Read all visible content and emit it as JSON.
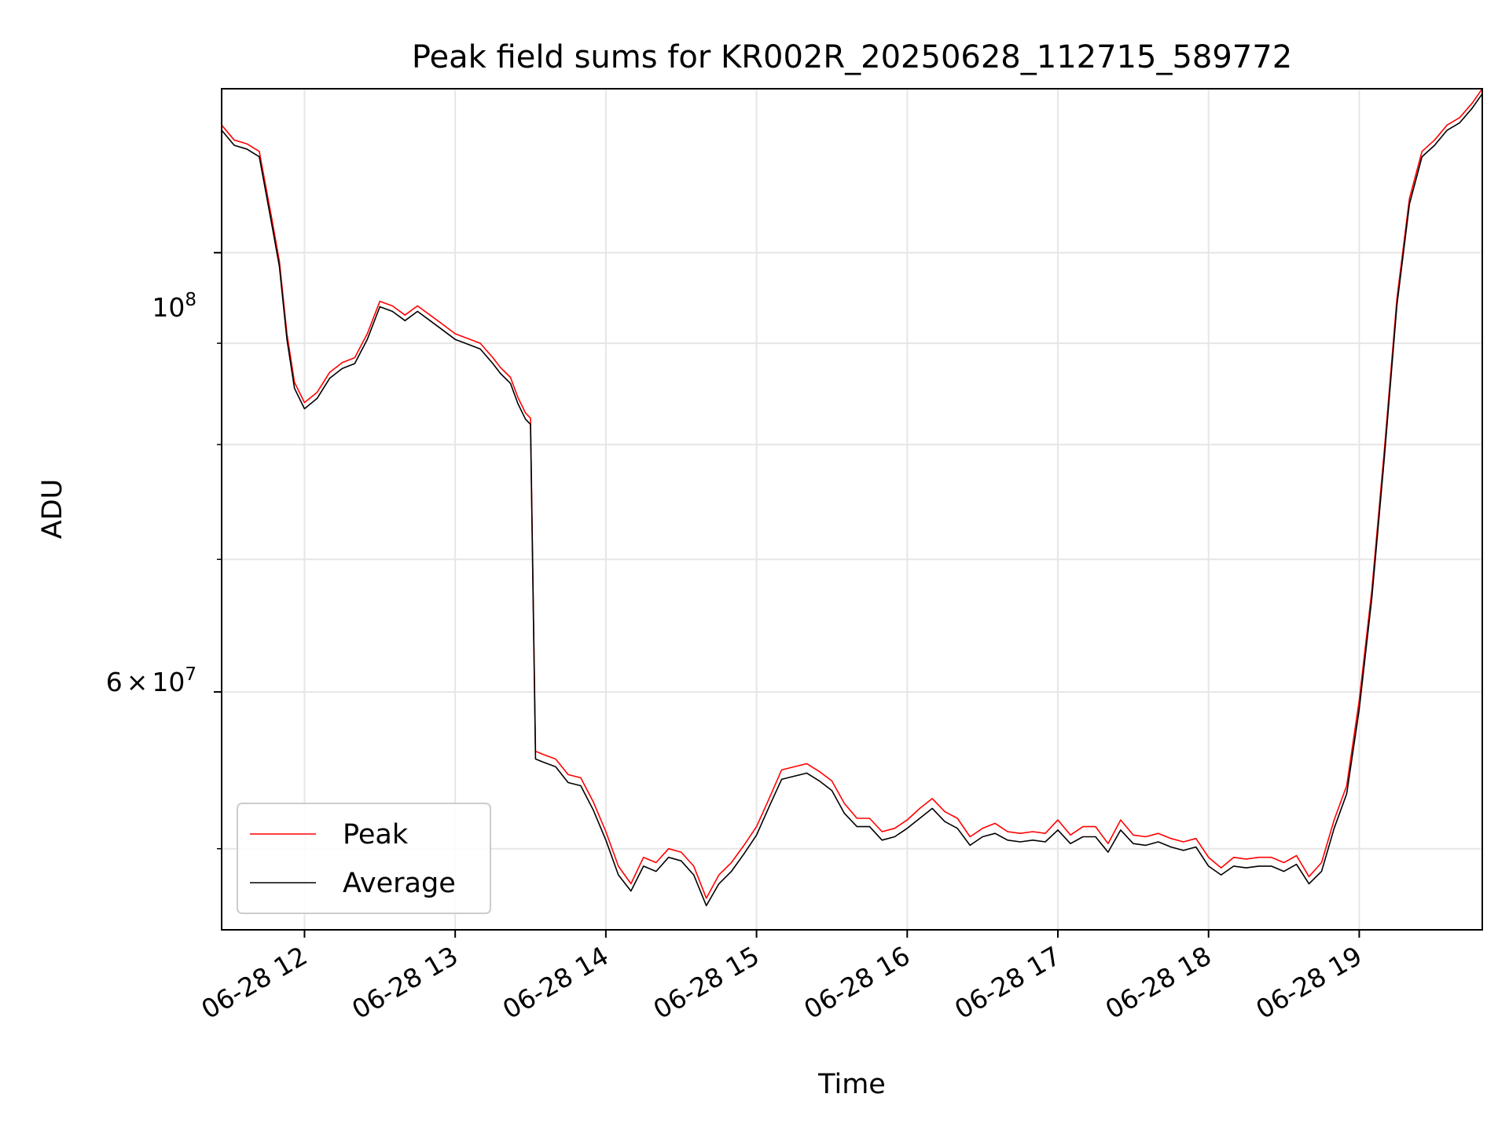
{
  "chart_data": {
    "type": "line",
    "title": "Peak field sums for KR002R_20250628_112715_589772",
    "xlabel": "Time",
    "ylabel": "ADU",
    "yscale": "log",
    "grid": true,
    "legend_position": "lower-left",
    "x_tick_labels": [
      "06-28 12",
      "06-28 13",
      "06-28 14",
      "06-28 15",
      "06-28 16",
      "06-28 17",
      "06-28 18",
      "06-28 19"
    ],
    "y_tick_labels": [
      {
        "value": 100000000,
        "base": "10",
        "exponent": "8"
      },
      {
        "value": 60000000,
        "mantissa": "6",
        "times": "×",
        "base": "10",
        "exponent": "7"
      }
    ],
    "xlim": [
      "2025-06-28 11:27",
      "2025-06-28 19:49"
    ],
    "ylim": [
      45500000,
      121000000
    ],
    "colors": {
      "Peak": "#ff0000",
      "Average": "#000000"
    },
    "series": [
      {
        "name": "Peak",
        "x": [
          "11:27",
          "11:32",
          "11:37",
          "11:42",
          "11:47",
          "11:50",
          "11:53",
          "11:56",
          "12:00",
          "12:05",
          "12:10",
          "12:15",
          "12:20",
          "12:25",
          "12:30",
          "12:35",
          "12:40",
          "12:45",
          "12:50",
          "12:55",
          "13:00",
          "13:05",
          "13:10",
          "13:15",
          "13:18",
          "13:22",
          "13:25",
          "13:28",
          "13:30",
          "13:32",
          "13:35",
          "13:40",
          "13:45",
          "13:50",
          "13:55",
          "14:00",
          "14:05",
          "14:10",
          "14:15",
          "14:20",
          "14:25",
          "14:30",
          "14:35",
          "14:40",
          "14:45",
          "14:50",
          "14:55",
          "15:00",
          "15:05",
          "15:10",
          "15:15",
          "15:20",
          "15:25",
          "15:30",
          "15:35",
          "15:40",
          "15:45",
          "15:50",
          "15:55",
          "16:00",
          "16:05",
          "16:10",
          "16:15",
          "16:20",
          "16:25",
          "16:30",
          "16:35",
          "16:40",
          "16:45",
          "16:50",
          "16:55",
          "17:00",
          "17:05",
          "17:10",
          "17:15",
          "17:20",
          "17:25",
          "17:30",
          "17:35",
          "17:40",
          "17:45",
          "17:50",
          "17:55",
          "18:00",
          "18:05",
          "18:10",
          "18:15",
          "18:20",
          "18:25",
          "18:30",
          "18:35",
          "18:40",
          "18:45",
          "18:50",
          "18:55",
          "19:00",
          "19:05",
          "19:10",
          "19:15",
          "19:20",
          "19:25",
          "19:30",
          "19:35",
          "19:40",
          "19:45",
          "19:49"
        ],
        "y": [
          116000000,
          114000000,
          113500000,
          112500000,
          104000000,
          99000000,
          91000000,
          86000000,
          84000000,
          85000000,
          87000000,
          88000000,
          88500000,
          91000000,
          94500000,
          94000000,
          93000000,
          94000000,
          93000000,
          92000000,
          91000000,
          90500000,
          90000000,
          88500000,
          87500000,
          86500000,
          84500000,
          83000000,
          82500000,
          56000000,
          55800000,
          55500000,
          54500000,
          54300000,
          52800000,
          51000000,
          49000000,
          48000000,
          49500000,
          49200000,
          50000000,
          49800000,
          49000000,
          47200000,
          48500000,
          49200000,
          50200000,
          51300000,
          53000000,
          54800000,
          55000000,
          55200000,
          54700000,
          54100000,
          52700000,
          51800000,
          51800000,
          51000000,
          51200000,
          51700000,
          52400000,
          53000000,
          52200000,
          51800000,
          50700000,
          51200000,
          51500000,
          51000000,
          50900000,
          51000000,
          50900000,
          51700000,
          50800000,
          51300000,
          51300000,
          50300000,
          51700000,
          50800000,
          50700000,
          50900000,
          50600000,
          50400000,
          50600000,
          49500000,
          48900000,
          49500000,
          49400000,
          49500000,
          49500000,
          49200000,
          49600000,
          48400000,
          49200000,
          51700000,
          53800000,
          59400000,
          67500000,
          79500000,
          94800000,
          106500000,
          112500000,
          114000000,
          116000000,
          117000000,
          119000000,
          121000000
        ]
      },
      {
        "name": "Average",
        "x": [
          "11:27",
          "11:32",
          "11:37",
          "11:42",
          "11:47",
          "11:50",
          "11:53",
          "11:56",
          "12:00",
          "12:05",
          "12:10",
          "12:15",
          "12:20",
          "12:25",
          "12:30",
          "12:35",
          "12:40",
          "12:45",
          "12:50",
          "12:55",
          "13:00",
          "13:05",
          "13:10",
          "13:15",
          "13:18",
          "13:22",
          "13:25",
          "13:28",
          "13:30",
          "13:32",
          "13:35",
          "13:40",
          "13:45",
          "13:50",
          "13:55",
          "14:00",
          "14:05",
          "14:10",
          "14:15",
          "14:20",
          "14:25",
          "14:30",
          "14:35",
          "14:40",
          "14:45",
          "14:50",
          "14:55",
          "15:00",
          "15:05",
          "15:10",
          "15:15",
          "15:20",
          "15:25",
          "15:30",
          "15:35",
          "15:40",
          "15:45",
          "15:50",
          "15:55",
          "16:00",
          "16:05",
          "16:10",
          "16:15",
          "16:20",
          "16:25",
          "16:30",
          "16:35",
          "16:40",
          "16:45",
          "16:50",
          "16:55",
          "17:00",
          "17:05",
          "17:10",
          "17:15",
          "17:20",
          "17:25",
          "17:30",
          "17:35",
          "17:40",
          "17:45",
          "17:50",
          "17:55",
          "18:00",
          "18:05",
          "18:10",
          "18:15",
          "18:20",
          "18:25",
          "18:30",
          "18:35",
          "18:40",
          "18:45",
          "18:50",
          "18:55",
          "19:00",
          "19:05",
          "19:10",
          "19:15",
          "19:20",
          "19:25",
          "19:30",
          "19:35",
          "19:40",
          "19:45",
          "19:49"
        ],
        "y": [
          115300000,
          113300000,
          112800000,
          111800000,
          103300000,
          98400000,
          90400000,
          85400000,
          83400000,
          84400000,
          86400000,
          87400000,
          87900000,
          90400000,
          93900000,
          93400000,
          92400000,
          93400000,
          92400000,
          91400000,
          90400000,
          89900000,
          89400000,
          87900000,
          86900000,
          85900000,
          83900000,
          82400000,
          81900000,
          55500000,
          55300000,
          55000000,
          54000000,
          53800000,
          52300000,
          50500000,
          48500000,
          47600000,
          49000000,
          48700000,
          49500000,
          49300000,
          48500000,
          46800000,
          48000000,
          48700000,
          49700000,
          50800000,
          52500000,
          54200000,
          54400000,
          54600000,
          54100000,
          53500000,
          52100000,
          51300000,
          51300000,
          50500000,
          50700000,
          51200000,
          51800000,
          52400000,
          51600000,
          51200000,
          50200000,
          50700000,
          50900000,
          50500000,
          50400000,
          50500000,
          50400000,
          51100000,
          50300000,
          50700000,
          50700000,
          49800000,
          51100000,
          50300000,
          50200000,
          50400000,
          50100000,
          49900000,
          50100000,
          49000000,
          48500000,
          49000000,
          48900000,
          49000000,
          49000000,
          48700000,
          49100000,
          48000000,
          48700000,
          51200000,
          53300000,
          58800000,
          66900000,
          78800000,
          94100000,
          105800000,
          111800000,
          113300000,
          115300000,
          116300000,
          118300000,
          120300000
        ]
      }
    ]
  }
}
